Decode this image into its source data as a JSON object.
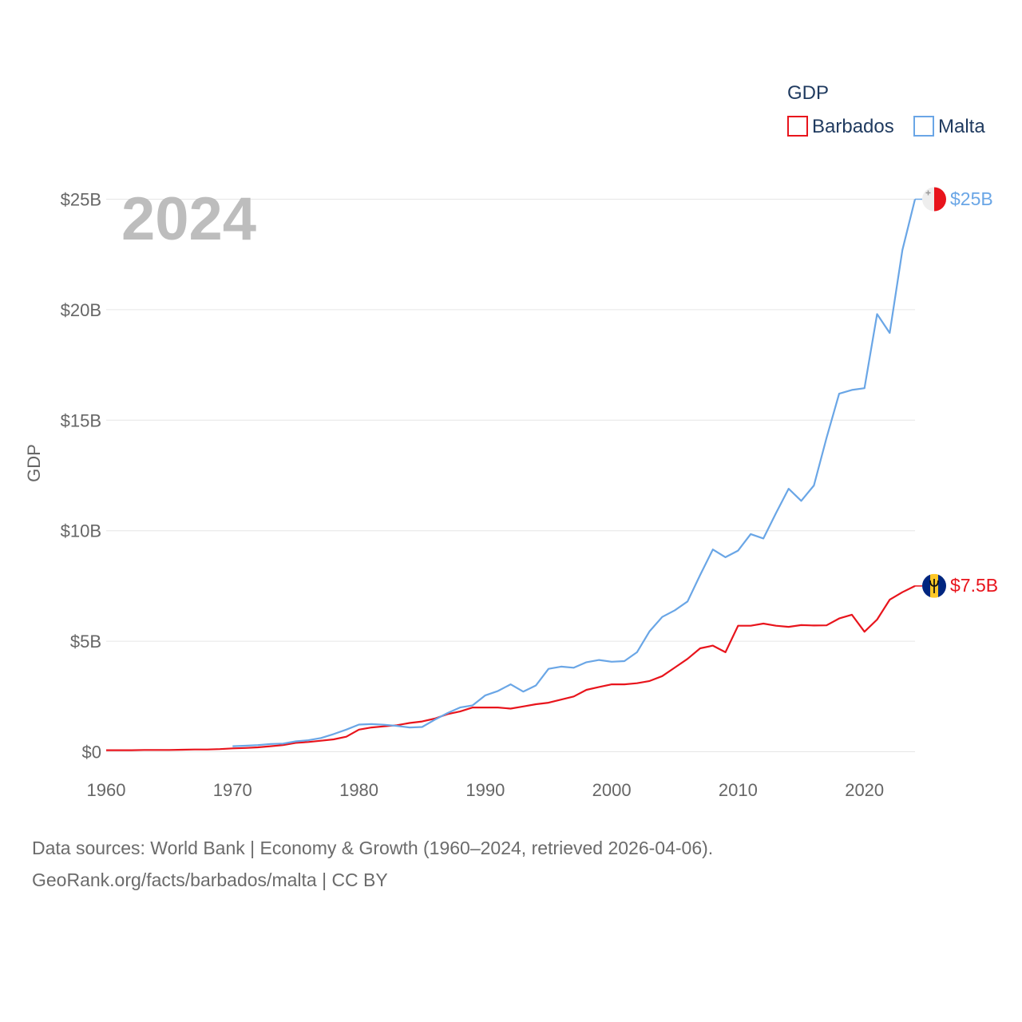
{
  "chart_data": {
    "type": "line",
    "title": "",
    "legend_title": "GDP",
    "legend_position": "top-right",
    "year_overlay": "2024",
    "xlabel": "",
    "ylabel": "GDP",
    "xlim": [
      1960,
      2024
    ],
    "ylim": [
      0,
      25
    ],
    "x_ticks": [
      {
        "value": 1960,
        "label": "1960"
      },
      {
        "value": 1970,
        "label": "1970"
      },
      {
        "value": 1980,
        "label": "1980"
      },
      {
        "value": 1990,
        "label": "1990"
      },
      {
        "value": 2000,
        "label": "2000"
      },
      {
        "value": 2010,
        "label": "2010"
      },
      {
        "value": 2020,
        "label": "2020"
      }
    ],
    "y_ticks": [
      {
        "value": 0,
        "label": "$0"
      },
      {
        "value": 5,
        "label": "$5B"
      },
      {
        "value": 10,
        "label": "$10B"
      },
      {
        "value": 15,
        "label": "$15B"
      },
      {
        "value": 20,
        "label": "$20B"
      },
      {
        "value": 25,
        "label": "$25B"
      }
    ],
    "grid": true,
    "series": [
      {
        "name": "Barbados",
        "color": "#e8141c",
        "end_label": "$7.5B",
        "flag": "barbados-flag",
        "points": [
          [
            1960,
            0.07
          ],
          [
            1961,
            0.07
          ],
          [
            1962,
            0.07
          ],
          [
            1963,
            0.08
          ],
          [
            1964,
            0.08
          ],
          [
            1965,
            0.08
          ],
          [
            1966,
            0.09
          ],
          [
            1967,
            0.1
          ],
          [
            1968,
            0.1
          ],
          [
            1969,
            0.12
          ],
          [
            1970,
            0.15
          ],
          [
            1971,
            0.17
          ],
          [
            1972,
            0.2
          ],
          [
            1973,
            0.25
          ],
          [
            1974,
            0.3
          ],
          [
            1975,
            0.4
          ],
          [
            1976,
            0.44
          ],
          [
            1977,
            0.5
          ],
          [
            1978,
            0.56
          ],
          [
            1979,
            0.68
          ],
          [
            1980,
            1.0
          ],
          [
            1981,
            1.1
          ],
          [
            1982,
            1.15
          ],
          [
            1983,
            1.2
          ],
          [
            1984,
            1.3
          ],
          [
            1985,
            1.37
          ],
          [
            1986,
            1.5
          ],
          [
            1987,
            1.7
          ],
          [
            1988,
            1.82
          ],
          [
            1989,
            2.0
          ],
          [
            1990,
            2.0
          ],
          [
            1991,
            2.0
          ],
          [
            1992,
            1.95
          ],
          [
            1993,
            2.05
          ],
          [
            1994,
            2.15
          ],
          [
            1995,
            2.22
          ],
          [
            1996,
            2.36
          ],
          [
            1997,
            2.5
          ],
          [
            1998,
            2.8
          ],
          [
            1999,
            2.93
          ],
          [
            2000,
            3.05
          ],
          [
            2001,
            3.05
          ],
          [
            2002,
            3.1
          ],
          [
            2003,
            3.2
          ],
          [
            2004,
            3.42
          ],
          [
            2005,
            3.81
          ],
          [
            2006,
            4.2
          ],
          [
            2007,
            4.68
          ],
          [
            2008,
            4.8
          ],
          [
            2009,
            4.5
          ],
          [
            2010,
            5.7
          ],
          [
            2011,
            5.7
          ],
          [
            2012,
            5.8
          ],
          [
            2013,
            5.7
          ],
          [
            2014,
            5.65
          ],
          [
            2015,
            5.73
          ],
          [
            2016,
            5.71
          ],
          [
            2017,
            5.72
          ],
          [
            2018,
            6.03
          ],
          [
            2019,
            6.2
          ],
          [
            2020,
            5.43
          ],
          [
            2021,
            5.98
          ],
          [
            2022,
            6.88
          ],
          [
            2023,
            7.22
          ],
          [
            2024,
            7.5
          ]
        ]
      },
      {
        "name": "Malta",
        "color": "#6aa6e6",
        "end_label": "$25B",
        "flag": "malta-flag",
        "points": [
          [
            1970,
            0.25
          ],
          [
            1971,
            0.27
          ],
          [
            1972,
            0.3
          ],
          [
            1973,
            0.35
          ],
          [
            1974,
            0.37
          ],
          [
            1975,
            0.47
          ],
          [
            1976,
            0.52
          ],
          [
            1977,
            0.62
          ],
          [
            1978,
            0.8
          ],
          [
            1979,
            1.0
          ],
          [
            1980,
            1.23
          ],
          [
            1981,
            1.25
          ],
          [
            1982,
            1.22
          ],
          [
            1983,
            1.17
          ],
          [
            1984,
            1.1
          ],
          [
            1985,
            1.12
          ],
          [
            1986,
            1.45
          ],
          [
            1987,
            1.75
          ],
          [
            1988,
            2.0
          ],
          [
            1989,
            2.1
          ],
          [
            1990,
            2.55
          ],
          [
            1991,
            2.75
          ],
          [
            1992,
            3.05
          ],
          [
            1993,
            2.72
          ],
          [
            1994,
            3.0
          ],
          [
            1995,
            3.75
          ],
          [
            1996,
            3.85
          ],
          [
            1997,
            3.8
          ],
          [
            1998,
            4.05
          ],
          [
            1999,
            4.15
          ],
          [
            2000,
            4.07
          ],
          [
            2001,
            4.1
          ],
          [
            2002,
            4.5
          ],
          [
            2003,
            5.45
          ],
          [
            2004,
            6.1
          ],
          [
            2005,
            6.4
          ],
          [
            2006,
            6.8
          ],
          [
            2007,
            8.0
          ],
          [
            2008,
            9.15
          ],
          [
            2009,
            8.8
          ],
          [
            2010,
            9.1
          ],
          [
            2011,
            9.85
          ],
          [
            2012,
            9.65
          ],
          [
            2013,
            10.8
          ],
          [
            2014,
            11.9
          ],
          [
            2015,
            11.35
          ],
          [
            2016,
            12.05
          ],
          [
            2017,
            14.2
          ],
          [
            2018,
            16.2
          ],
          [
            2019,
            16.37
          ],
          [
            2020,
            16.45
          ],
          [
            2021,
            19.8
          ],
          [
            2022,
            18.95
          ],
          [
            2023,
            22.7
          ],
          [
            2024,
            25.0
          ]
        ]
      }
    ]
  },
  "footer": {
    "line1": "Data sources: World Bank | Economy & Growth (1960–2024, retrieved 2026-04-06).",
    "line2": "GeoRank.org/facts/barbados/malta | CC BY"
  },
  "colors": {
    "grid": "#e6e6e6",
    "tick_text": "#666666",
    "legend_text": "#1f3a5f",
    "year_overlay": "#bdbdbd"
  }
}
